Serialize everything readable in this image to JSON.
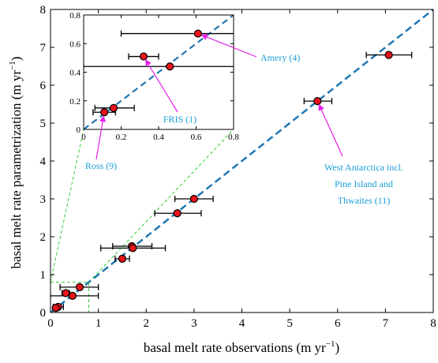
{
  "chart_data": {
    "type": "scatter",
    "xlabel": "basal melt rate observations (m yr",
    "ylabel": "basal melt rate parametrization (m yr",
    "unit_superscript": "−1",
    "unit_close": ")",
    "xlim": [
      0,
      8
    ],
    "ylim": [
      0,
      8
    ],
    "xticks": [
      "0",
      "1",
      "2",
      "3",
      "4",
      "5",
      "6",
      "7",
      "8"
    ],
    "yticks": [
      "0",
      "1",
      "2",
      "3",
      "4",
      "5",
      "6",
      "7",
      "8"
    ],
    "grid": false,
    "identity_line": true,
    "colors": {
      "marker": "#e8141b",
      "identity_line": "#1f77b4",
      "zoom_box": "#33cc33",
      "annotation_text": "#1a9fd8",
      "annotation_arrow": "#e61ee6"
    },
    "points": [
      {
        "x": 7.07,
        "y": 6.8,
        "xerr": [
          6.6,
          7.55
        ]
      },
      {
        "x": 5.58,
        "y": 5.58,
        "xerr": [
          5.3,
          5.88
        ]
      },
      {
        "x": 3.0,
        "y": 3.0,
        "xerr": [
          2.6,
          3.4
        ]
      },
      {
        "x": 2.65,
        "y": 2.62,
        "xerr": [
          2.18,
          3.15
        ]
      },
      {
        "x": 1.7,
        "y": 1.75,
        "xerr": [
          1.3,
          2.12
        ]
      },
      {
        "x": 1.72,
        "y": 1.7,
        "xerr": [
          1.05,
          2.4
        ]
      },
      {
        "x": 1.5,
        "y": 1.42,
        "xerr": [
          1.35,
          1.65
        ]
      },
      {
        "x": 0.61,
        "y": 0.67,
        "xerr": [
          0.2,
          1.0
        ]
      },
      {
        "x": 0.32,
        "y": 0.51,
        "xerr": [
          0.24,
          0.4
        ]
      },
      {
        "x": 0.46,
        "y": 0.44,
        "xerr": [
          0.0,
          1.0
        ]
      },
      {
        "x": 0.16,
        "y": 0.15,
        "xerr": [
          0.06,
          0.27
        ]
      },
      {
        "x": 0.11,
        "y": 0.12,
        "xerr": [
          0.05,
          0.17
        ]
      }
    ],
    "zoom_region": {
      "xlim": [
        0,
        0.8
      ],
      "ylim": [
        0,
        0.8
      ]
    },
    "inset": {
      "xlim": [
        0,
        0.8
      ],
      "ylim": [
        0,
        0.8
      ],
      "xticks": [
        "0",
        "0.2",
        "0.4",
        "0.6",
        "0.8"
      ],
      "yticks": [
        "0",
        "0.2",
        "0.4",
        "0.6",
        "0.8"
      ],
      "points": [
        {
          "x": 0.61,
          "y": 0.67,
          "xerr": [
            0.2,
            1.0
          ]
        },
        {
          "x": 0.32,
          "y": 0.51,
          "xerr": [
            0.24,
            0.4
          ]
        },
        {
          "x": 0.46,
          "y": 0.44,
          "xerr": [
            0.0,
            1.0
          ]
        },
        {
          "x": 0.16,
          "y": 0.15,
          "xerr": [
            0.06,
            0.27
          ]
        },
        {
          "x": 0.11,
          "y": 0.12,
          "xerr": [
            0.05,
            0.17
          ]
        }
      ]
    },
    "annotations": [
      {
        "lines": [
          "Amery (4)"
        ],
        "target": "inset",
        "tx": 0.61,
        "ty": 0.67
      },
      {
        "lines": [
          "FRIS (1)"
        ],
        "target": "inset",
        "tx": 0.32,
        "ty": 0.51
      },
      {
        "lines": [
          "Ross (9)"
        ],
        "target": "inset",
        "tx": 0.11,
        "ty": 0.12
      },
      {
        "lines": [
          "West Antarctica incl.",
          "Pine Island and",
          "Thwaites (11)"
        ],
        "target": "main",
        "tx": 5.58,
        "ty": 5.58
      }
    ]
  }
}
